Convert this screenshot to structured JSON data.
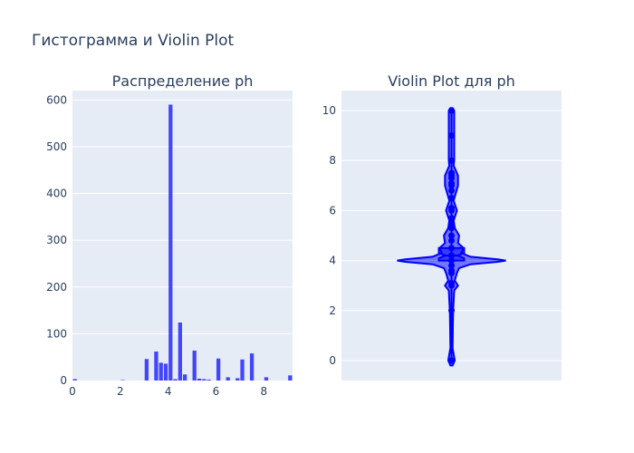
{
  "figure": {
    "title": "Гистограмма и Violin Plot"
  },
  "colors": {
    "plot_bg": "#E5ECF6",
    "grid": "#ffffff",
    "bar": "#0000ff",
    "text": "#2a3f5f",
    "violin_fill": "#0000ff",
    "violin_line": "#0000ff"
  },
  "chart_data": [
    {
      "type": "bar",
      "title": "Распределение ph",
      "xlabel": "",
      "ylabel": "",
      "xlim": [
        0,
        9.2
      ],
      "ylim": [
        0,
        620
      ],
      "x_ticks": [
        0,
        2,
        4,
        6,
        8
      ],
      "y_ticks": [
        0,
        100,
        200,
        300,
        400,
        500,
        600
      ],
      "grid": true,
      "bin_width": 0.2,
      "bins": [
        {
          "x0": 0.0,
          "count": 3
        },
        {
          "x0": 2.0,
          "count": 1
        },
        {
          "x0": 3.0,
          "count": 46
        },
        {
          "x0": 3.4,
          "count": 62
        },
        {
          "x0": 3.6,
          "count": 38
        },
        {
          "x0": 3.8,
          "count": 36
        },
        {
          "x0": 4.0,
          "count": 590
        },
        {
          "x0": 4.2,
          "count": 3
        },
        {
          "x0": 4.4,
          "count": 124
        },
        {
          "x0": 4.6,
          "count": 13
        },
        {
          "x0": 5.0,
          "count": 64
        },
        {
          "x0": 5.2,
          "count": 4
        },
        {
          "x0": 5.4,
          "count": 3
        },
        {
          "x0": 5.6,
          "count": 2
        },
        {
          "x0": 6.0,
          "count": 47
        },
        {
          "x0": 6.4,
          "count": 7
        },
        {
          "x0": 6.8,
          "count": 5
        },
        {
          "x0": 7.0,
          "count": 45
        },
        {
          "x0": 7.4,
          "count": 58
        },
        {
          "x0": 8.0,
          "count": 7
        },
        {
          "x0": 9.0,
          "count": 11
        }
      ]
    },
    {
      "type": "violin",
      "title": "Violin Plot для ph",
      "xlabel": "",
      "ylabel": "",
      "ylim": [
        -0.8,
        10.8
      ],
      "y_ticks": [
        0,
        2,
        4,
        6,
        8,
        10
      ],
      "grid": true,
      "box": {
        "q1": 4.0,
        "median": 4.2,
        "q3": 4.5,
        "lower_fence": 3.0,
        "upper_fence": 5.0,
        "min": 0,
        "max": 10
      },
      "points": [
        0,
        2,
        3.0,
        3.1,
        3.5,
        3.6,
        3.8,
        4.0,
        4.2,
        4.5,
        4.8,
        5.0,
        5.3,
        5.5,
        5.7,
        6.0,
        6.1,
        6.5,
        6.8,
        7.0,
        7.1,
        7.3,
        7.4,
        7.5,
        8.0,
        9.0,
        10.0
      ],
      "density_profile": [
        {
          "y": -0.2,
          "w": 0.02
        },
        {
          "y": 0.0,
          "w": 0.06
        },
        {
          "y": 0.5,
          "w": 0.02
        },
        {
          "y": 2.0,
          "w": 0.03
        },
        {
          "y": 2.8,
          "w": 0.05
        },
        {
          "y": 3.0,
          "w": 0.12
        },
        {
          "y": 3.2,
          "w": 0.06
        },
        {
          "y": 3.5,
          "w": 0.1
        },
        {
          "y": 3.7,
          "w": 0.14
        },
        {
          "y": 3.85,
          "w": 0.35
        },
        {
          "y": 3.95,
          "w": 0.85
        },
        {
          "y": 4.0,
          "w": 1.0
        },
        {
          "y": 4.05,
          "w": 0.85
        },
        {
          "y": 4.15,
          "w": 0.35
        },
        {
          "y": 4.3,
          "w": 0.18
        },
        {
          "y": 4.5,
          "w": 0.22
        },
        {
          "y": 4.7,
          "w": 0.12
        },
        {
          "y": 5.0,
          "w": 0.14
        },
        {
          "y": 5.3,
          "w": 0.06
        },
        {
          "y": 5.6,
          "w": 0.04
        },
        {
          "y": 6.0,
          "w": 0.1
        },
        {
          "y": 6.4,
          "w": 0.04
        },
        {
          "y": 7.0,
          "w": 0.12
        },
        {
          "y": 7.4,
          "w": 0.12
        },
        {
          "y": 7.8,
          "w": 0.04
        },
        {
          "y": 8.0,
          "w": 0.05
        },
        {
          "y": 9.0,
          "w": 0.05
        },
        {
          "y": 10.0,
          "w": 0.05
        },
        {
          "y": 10.1,
          "w": 0.02
        }
      ]
    }
  ]
}
